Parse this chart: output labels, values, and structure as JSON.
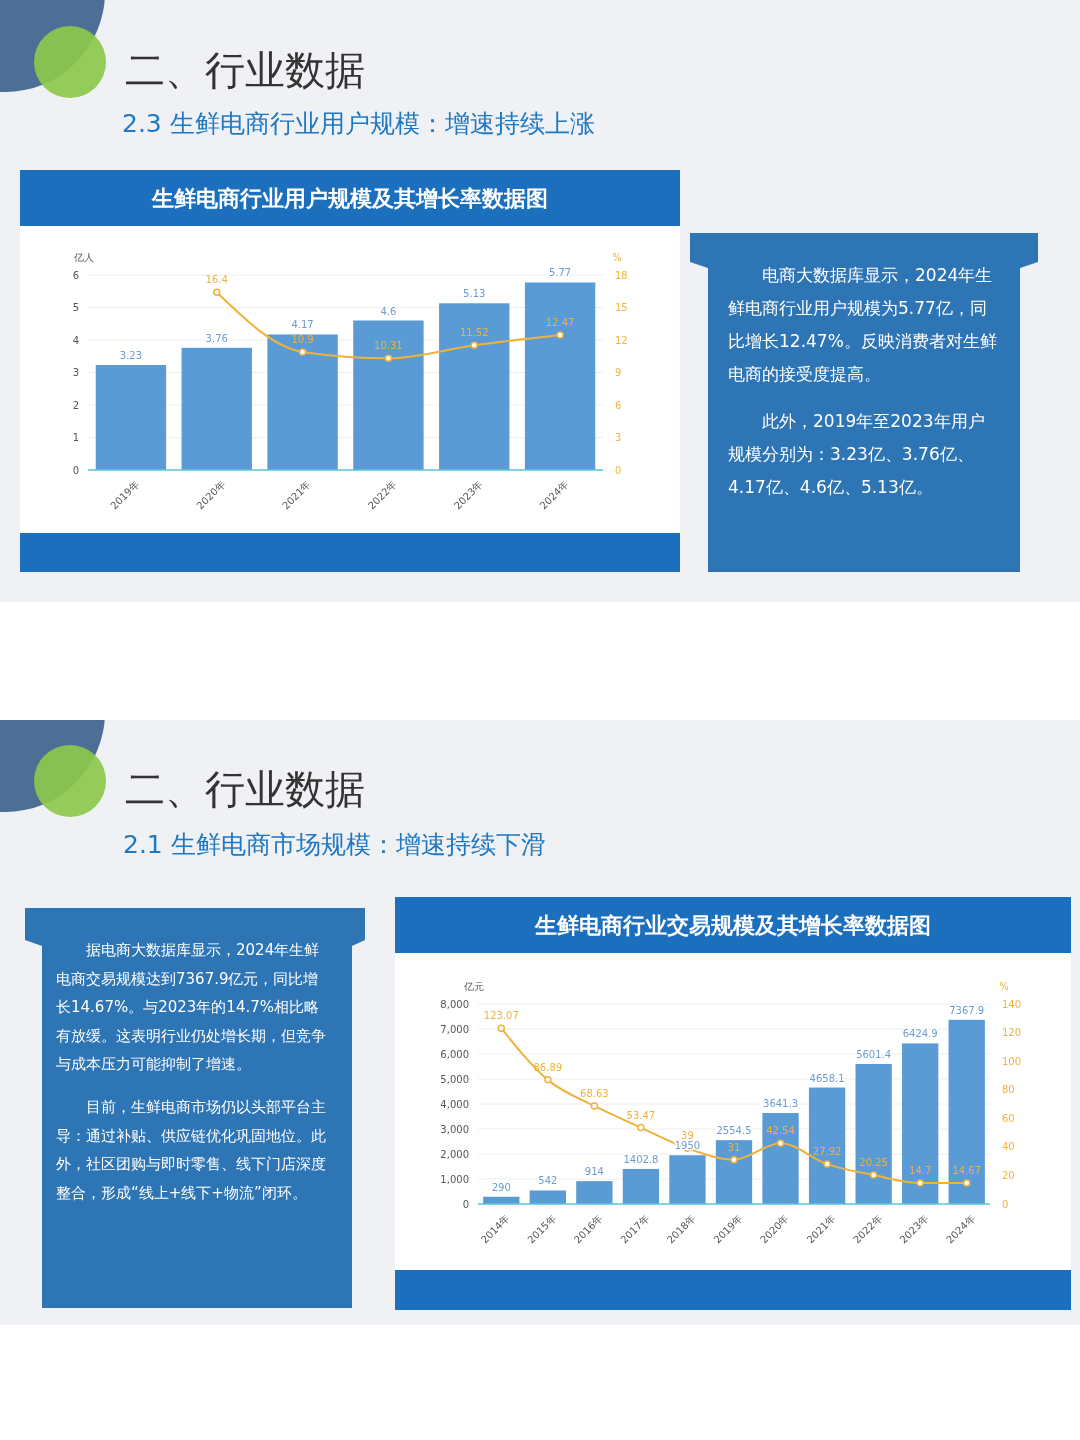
{
  "chart_data": [
    {
      "type": "bar",
      "title": "生鲜电商行业用户规模及其增长率数据图",
      "subtitle": "2.3 生鲜电商行业用户规模：增速持续上涨",
      "ylabel": "亿人",
      "y2label": "%",
      "annotations": [
        "二、行业数据",
        "电商大数据库显示，2024年生鲜电商行业用户规模为5.77亿，同比增长12.47%。反映消费者对生鲜电商的接受度提高。",
        "此外，2019年至2023年用户规模分别为：3.23亿、3.76亿、4.17亿、4.6亿、5.13亿。"
      ],
      "categories": [
        "2019年",
        "2020年",
        "2021年",
        "2022年",
        "2023年",
        "2024年"
      ],
      "series": [
        {
          "color": "#5b9bd5",
          "values": [
            3.23,
            3.76,
            4.17,
            4.6,
            5.13,
            5.77
          ]
        },
        {
          "type": "line",
          "axis": "y2",
          "color": "#efb23a",
          "values": [
            null,
            16.4,
            10.9,
            10.31,
            11.52,
            12.47
          ]
        }
      ],
      "ylim": [
        0,
        6
      ],
      "yticks": [
        0,
        1,
        2,
        3,
        4,
        5,
        6
      ],
      "y2lim": [
        0,
        18
      ],
      "y2ticks": [
        0,
        3,
        6,
        9,
        12,
        15,
        18
      ],
      "grid": "y",
      "marker": "circle",
      "data_labels": true
    },
    {
      "type": "bar",
      "title": "生鲜电商行业交易规模及其增长率数据图",
      "subtitle": "2.1 生鲜电商市场规模：增速持续下滑",
      "ylabel": "亿元",
      "y2label": "%",
      "annotations": [
        "二、行业数据",
        "据电商大数据库显示，2024年生鲜电商交易规模达到7367.9亿元，同比增长14.67%。与2023年的14.7%相比略有放缓。这表明行业仍处增长期，但竞争与成本压力可能抑制了增速。",
        "目前，生鲜电商市场仍以头部平台主导：通过补贴、供应链优化巩固地位。此外，社区团购与即时零售、线下门店深度整合，形成“线上+线下+物流”闭环。"
      ],
      "categories": [
        "2014年",
        "2015年",
        "2016年",
        "2017年",
        "2018年",
        "2019年",
        "2020年",
        "2021年",
        "2022年",
        "2023年",
        "2024年"
      ],
      "series": [
        {
          "color": "#5b9bd5",
          "values": [
            290,
            542,
            914,
            1402.8,
            1950,
            2554.5,
            3641.3,
            4658.1,
            5601.4,
            6424.9,
            7367.9
          ]
        },
        {
          "type": "line",
          "axis": "y2",
          "color": "#efb23a",
          "values": [
            123.07,
            86.89,
            68.63,
            53.47,
            39,
            31,
            42.54,
            27.92,
            20.25,
            14.7,
            14.67
          ]
        }
      ],
      "ylim": [
        0,
        8000
      ],
      "yticks": [
        0,
        {
          "value": 1000,
          "label": "1,000"
        },
        {
          "value": 2000,
          "label": "2,000"
        },
        {
          "value": 3000,
          "label": "3,000"
        },
        {
          "value": 4000,
          "label": "4,000"
        },
        {
          "value": 5000,
          "label": "5,000"
        },
        {
          "value": 6000,
          "label": "6,000"
        },
        {
          "value": 7000,
          "label": "7,000"
        },
        {
          "value": 8000,
          "label": "8,000"
        }
      ],
      "y2lim": [
        0,
        140
      ],
      "y2ticks": [
        0,
        20,
        40,
        60,
        80,
        100,
        120,
        140
      ],
      "grid": "y",
      "marker": "circle",
      "data_labels": true
    }
  ]
}
